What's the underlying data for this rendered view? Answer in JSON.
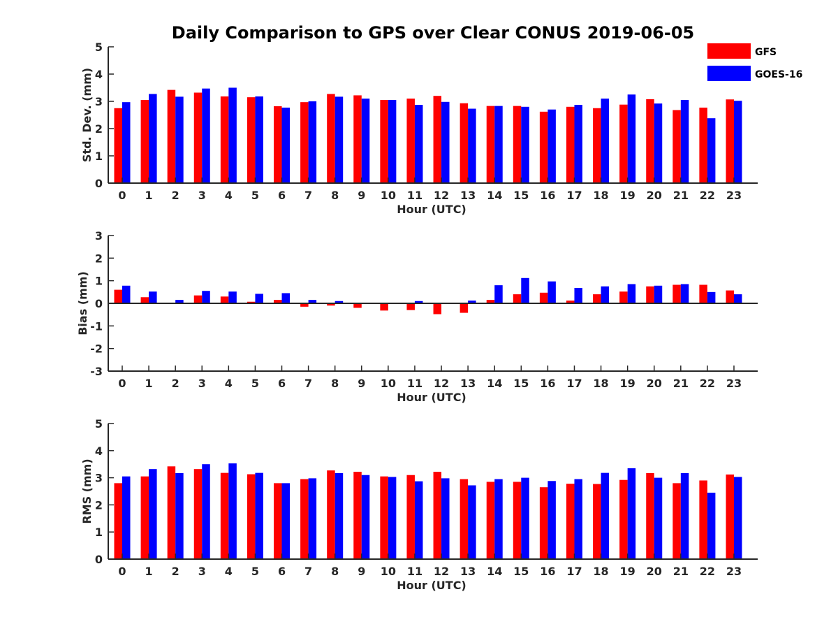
{
  "chart_data": {
    "type": "bar",
    "title": "Daily Comparison to GPS over Clear CONUS 2019-06-05",
    "categories": [
      "0",
      "1",
      "2",
      "3",
      "4",
      "5",
      "6",
      "7",
      "8",
      "9",
      "10",
      "11",
      "12",
      "13",
      "14",
      "15",
      "16",
      "17",
      "18",
      "19",
      "20",
      "21",
      "22",
      "23"
    ],
    "legend": {
      "position": "top-right",
      "entries": [
        {
          "name": "GFS",
          "color": "#ff0000"
        },
        {
          "name": "GOES-16",
          "color": "#0000ff"
        }
      ]
    },
    "panels": [
      {
        "id": "std",
        "xlabel": "Hour (UTC)",
        "ylabel": "Std. Dev. (mm)",
        "ylim": [
          0,
          5
        ],
        "yticks": [
          "0",
          "1",
          "2",
          "3",
          "4",
          "5"
        ],
        "series": [
          {
            "name": "GFS",
            "color": "#ff0000",
            "values": [
              2.75,
              3.05,
              3.42,
              3.32,
              3.18,
              3.15,
              2.82,
              2.97,
              3.27,
              3.22,
              3.05,
              3.1,
              3.2,
              2.93,
              2.83,
              2.83,
              2.62,
              2.8,
              2.75,
              2.88,
              3.08,
              2.68,
              2.77,
              3.07
            ]
          },
          {
            "name": "GOES-16",
            "color": "#0000ff",
            "values": [
              2.97,
              3.27,
              3.17,
              3.47,
              3.5,
              3.18,
              2.77,
              3.0,
              3.17,
              3.1,
              3.05,
              2.87,
              2.98,
              2.73,
              2.83,
              2.8,
              2.7,
              2.87,
              3.1,
              3.25,
              2.92,
              3.05,
              2.38,
              3.02
            ]
          }
        ]
      },
      {
        "id": "bias",
        "xlabel": "Hour (UTC)",
        "ylabel": "Bias (mm)",
        "ylim": [
          -3,
          3
        ],
        "yticks": [
          "-3",
          "-2",
          "-1",
          "0",
          "1",
          "2",
          "3"
        ],
        "series": [
          {
            "name": "GFS",
            "color": "#ff0000",
            "values": [
              0.6,
              0.27,
              0.03,
              0.35,
              0.3,
              0.07,
              0.15,
              -0.15,
              -0.1,
              -0.2,
              -0.32,
              -0.3,
              -0.48,
              -0.42,
              0.15,
              0.4,
              0.47,
              0.12,
              0.4,
              0.52,
              0.75,
              0.82,
              0.82,
              0.57
            ]
          },
          {
            "name": "GOES-16",
            "color": "#0000ff",
            "values": [
              0.78,
              0.52,
              0.15,
              0.55,
              0.52,
              0.42,
              0.45,
              0.15,
              0.1,
              0.0,
              -0.02,
              0.1,
              0.0,
              0.12,
              0.8,
              1.12,
              0.97,
              0.68,
              0.75,
              0.85,
              0.78,
              0.85,
              0.5,
              0.4
            ]
          }
        ]
      },
      {
        "id": "rms",
        "xlabel": "Hour (UTC)",
        "ylabel": "RMS (mm)",
        "ylim": [
          0,
          5
        ],
        "yticks": [
          "0",
          "1",
          "2",
          "3",
          "4",
          "5"
        ],
        "series": [
          {
            "name": "GFS",
            "color": "#ff0000",
            "values": [
              2.8,
              3.05,
              3.42,
              3.32,
              3.18,
              3.13,
              2.8,
              2.95,
              3.27,
              3.22,
              3.05,
              3.1,
              3.22,
              2.95,
              2.85,
              2.85,
              2.65,
              2.78,
              2.77,
              2.92,
              3.17,
              2.8,
              2.9,
              3.12
            ]
          },
          {
            "name": "GOES-16",
            "color": "#0000ff",
            "values": [
              3.05,
              3.32,
              3.17,
              3.5,
              3.53,
              3.18,
              2.8,
              2.98,
              3.17,
              3.1,
              3.03,
              2.87,
              2.98,
              2.72,
              2.95,
              3.0,
              2.88,
              2.95,
              3.18,
              3.35,
              3.0,
              3.17,
              2.45,
              3.03
            ]
          }
        ]
      }
    ]
  }
}
